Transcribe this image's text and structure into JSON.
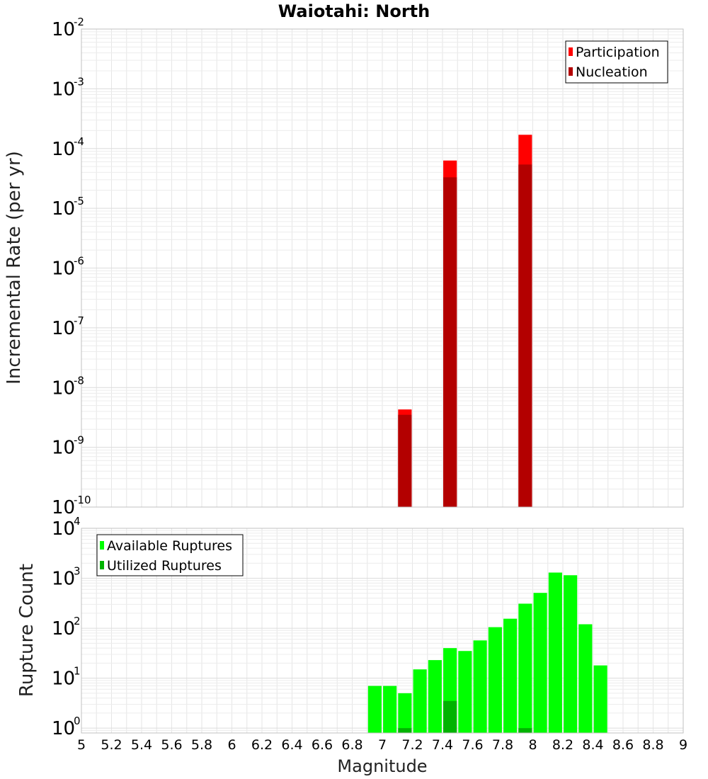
{
  "chart_data": [
    {
      "type": "bar",
      "scale": "log",
      "title": "Waiotahi: North",
      "xlabel": "",
      "ylabel": "Incremental Rate (per yr)",
      "xlim": [
        5,
        9
      ],
      "ylim": [
        1e-10,
        0.01
      ],
      "y_tick_exponents": [
        -10,
        -9,
        -8,
        -7,
        -6,
        -5,
        -4,
        -3,
        -2
      ],
      "bar_width": 0.09,
      "legend_position": "top-right",
      "grid": true,
      "series": [
        {
          "name": "Participation",
          "color": "#ff0000",
          "x": [
            7.15,
            7.45,
            7.95
          ],
          "values": [
            4.3e-09,
            6.3e-05,
            0.00017
          ]
        },
        {
          "name": "Nucleation",
          "color": "#b30000",
          "x": [
            7.15,
            7.45,
            7.95
          ],
          "values": [
            3.5e-09,
            3.3e-05,
            5.4e-05
          ]
        }
      ]
    },
    {
      "type": "bar",
      "scale": "log",
      "title": "",
      "xlabel": "Magnitude",
      "ylabel": "Rupture Count",
      "xlim": [
        5,
        9
      ],
      "ylim": [
        0.8,
        10000
      ],
      "y_tick_exponents": [
        0,
        1,
        2,
        3,
        4
      ],
      "x_ticks": [
        "5",
        "5.2",
        "5.4",
        "5.6",
        "5.8",
        "6",
        "6.2",
        "6.4",
        "6.6",
        "6.8",
        "7",
        "7.2",
        "7.4",
        "7.6",
        "7.8",
        "8",
        "8.2",
        "8.4",
        "8.6",
        "8.8",
        "9"
      ],
      "bar_width": 0.09,
      "legend_position": "top-left",
      "grid": true,
      "series": [
        {
          "name": "Available Ruptures",
          "color": "#00ff00",
          "x": [
            6.95,
            7.05,
            7.15,
            7.25,
            7.35,
            7.45,
            7.55,
            7.65,
            7.75,
            7.85,
            7.95,
            8.05,
            8.15,
            8.25,
            8.35,
            8.45
          ],
          "values": [
            7,
            7,
            5,
            15,
            23,
            40,
            35,
            57,
            105,
            155,
            310,
            510,
            1300,
            1150,
            120,
            18
          ]
        },
        {
          "name": "Utilized Ruptures",
          "color": "#00b300",
          "x": [
            7.15,
            7.45,
            7.95
          ],
          "values": [
            1,
            3.5,
            1
          ]
        }
      ]
    }
  ]
}
